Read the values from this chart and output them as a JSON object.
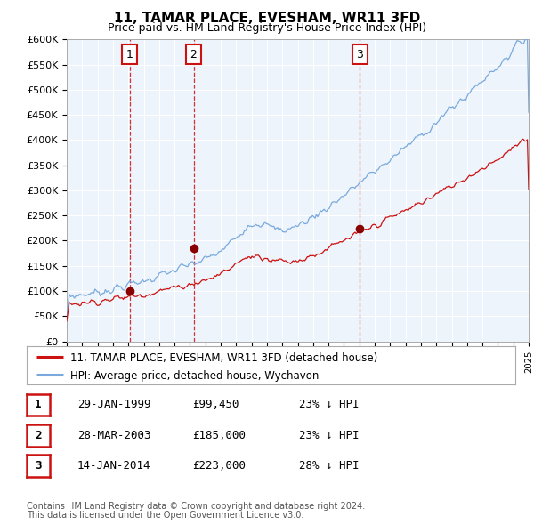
{
  "title": "11, TAMAR PLACE, EVESHAM, WR11 3FD",
  "subtitle": "Price paid vs. HM Land Registry's House Price Index (HPI)",
  "ylabel_ticks": [
    "£0",
    "£50K",
    "£100K",
    "£150K",
    "£200K",
    "£250K",
    "£300K",
    "£350K",
    "£400K",
    "£450K",
    "£500K",
    "£550K",
    "£600K"
  ],
  "ytick_values": [
    0,
    50000,
    100000,
    150000,
    200000,
    250000,
    300000,
    350000,
    400000,
    450000,
    500000,
    550000,
    600000
  ],
  "xmin": 1995,
  "xmax": 2025,
  "ymin": 0,
  "ymax": 600000,
  "sales": [
    {
      "date_num": 1999.08,
      "price": 99450,
      "label": "1"
    },
    {
      "date_num": 2003.24,
      "price": 185000,
      "label": "2"
    },
    {
      "date_num": 2014.04,
      "price": 223000,
      "label": "3"
    }
  ],
  "vlines": [
    1999.08,
    2003.24,
    2014.04
  ],
  "legend_line1": "11, TAMAR PLACE, EVESHAM, WR11 3FD (detached house)",
  "legend_line2": "HPI: Average price, detached house, Wychavon",
  "table_rows": [
    {
      "num": "1",
      "date": "29-JAN-1999",
      "price": "£99,450",
      "hpi": "23% ↓ HPI"
    },
    {
      "num": "2",
      "date": "28-MAR-2003",
      "price": "£185,000",
      "hpi": "23% ↓ HPI"
    },
    {
      "num": "3",
      "date": "14-JAN-2014",
      "price": "£223,000",
      "hpi": "28% ↓ HPI"
    }
  ],
  "footnote1": "Contains HM Land Registry data © Crown copyright and database right 2024.",
  "footnote2": "This data is licensed under the Open Government Licence v3.0.",
  "hpi_color": "#7aaadd",
  "sold_color": "#cc1111",
  "vline_color": "#cc1111",
  "bg_color": "#ffffff",
  "plot_bg_color": "#eef4fb",
  "grid_color": "#ffffff"
}
